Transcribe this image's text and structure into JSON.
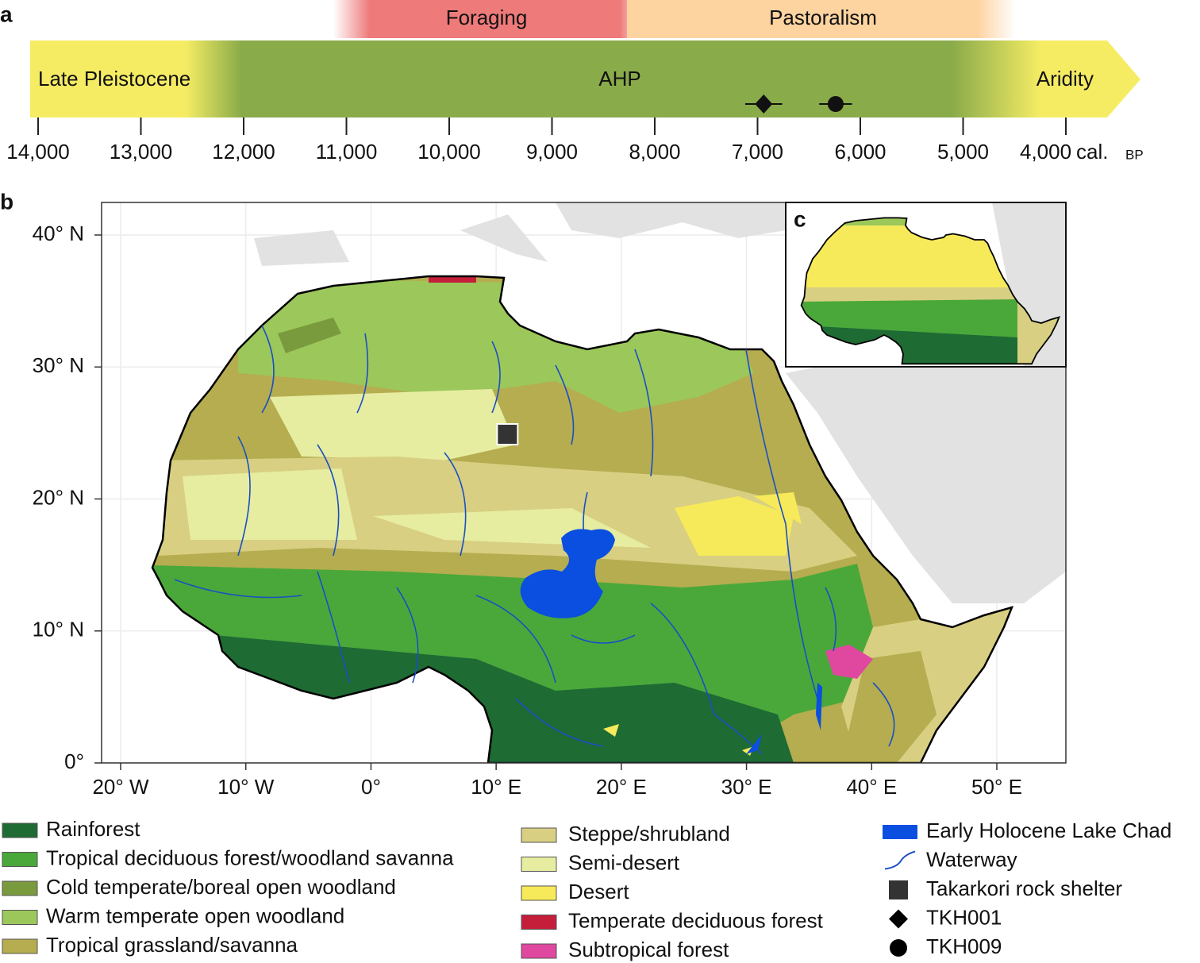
{
  "panel_a": {
    "label": "a",
    "periods": [
      "Foraging",
      "Pastoralism"
    ],
    "phases": [
      "Late Pleistocene",
      "AHP",
      "Aridity"
    ],
    "ticks": [
      {
        "value": 14000,
        "label": "14,000"
      },
      {
        "value": 13000,
        "label": "13,000"
      },
      {
        "value": 12000,
        "label": "12,000"
      },
      {
        "value": 11000,
        "label": "11,000"
      },
      {
        "value": 10000,
        "label": "10,000"
      },
      {
        "value": 9000,
        "label": "9,000"
      },
      {
        "value": 8000,
        "label": "8,000"
      },
      {
        "value": 7000,
        "label": "7,000"
      },
      {
        "value": 6000,
        "label": "6,000"
      },
      {
        "value": 5000,
        "label": "5,000"
      },
      {
        "value": 4000,
        "label": "4,000"
      }
    ],
    "unit": "cal.",
    "unit_suffix": "BP",
    "markers": [
      {
        "value": 6940,
        "error": 180,
        "symbol": "diamond"
      },
      {
        "value": 6240,
        "error": 160,
        "symbol": "circle"
      }
    ]
  },
  "panel_b": {
    "label": "b",
    "xticks": [
      {
        "value": -20,
        "label": "20° W"
      },
      {
        "value": -10,
        "label": "10° W"
      },
      {
        "value": 0,
        "label": "0°"
      },
      {
        "value": 10,
        "label": "10° E"
      },
      {
        "value": 20,
        "label": "20° E"
      },
      {
        "value": 30,
        "label": "30° E"
      },
      {
        "value": 40,
        "label": "40° E"
      },
      {
        "value": 50,
        "label": "50° E"
      }
    ],
    "yticks": [
      {
        "value": 0,
        "label": "0°"
      },
      {
        "value": 10,
        "label": "10° N"
      },
      {
        "value": 20,
        "label": "20° N"
      },
      {
        "value": 30,
        "label": "30° N"
      },
      {
        "value": 40,
        "label": "40° N"
      }
    ],
    "site": {
      "lon": 10.9,
      "lat": 24.9
    }
  },
  "panel_c": {
    "label": "c"
  },
  "legend": {
    "columns": [
      [
        {
          "label": "Rainforest",
          "color": "#1e6b34"
        },
        {
          "label": "Tropical deciduous forest/woodland savanna",
          "color": "#4aa83a"
        },
        {
          "label": "Cold temperate/boreal open woodland",
          "color": "#7a9a3e"
        },
        {
          "label": "Warm temperate open woodland",
          "color": "#9cc75a"
        },
        {
          "label": "Tropical grassland/savanna",
          "color": "#b5ad4f"
        }
      ],
      [
        {
          "label": "Steppe/shrubland",
          "color": "#d8cf82"
        },
        {
          "label": "Semi-desert",
          "color": "#e6eda0"
        },
        {
          "label": "Desert",
          "color": "#f7ea5a"
        },
        {
          "label": "Temperate deciduous forest",
          "color": "#c41e3a"
        },
        {
          "label": "Subtropical forest",
          "color": "#e048a0"
        }
      ],
      [
        {
          "label": "Early Holocene Lake Chad",
          "color": "#0a4fe0",
          "symbol": "square"
        },
        {
          "label": "Waterway",
          "color": "#1a4fc4",
          "symbol": "line"
        },
        {
          "label": "Takarkori rock shelter",
          "color": "#333333",
          "symbol": "square"
        },
        {
          "label": "TKH001",
          "color": "#000000",
          "symbol": "diamond"
        },
        {
          "label": "TKH009",
          "color": "#000000",
          "symbol": "circle"
        }
      ]
    ]
  }
}
